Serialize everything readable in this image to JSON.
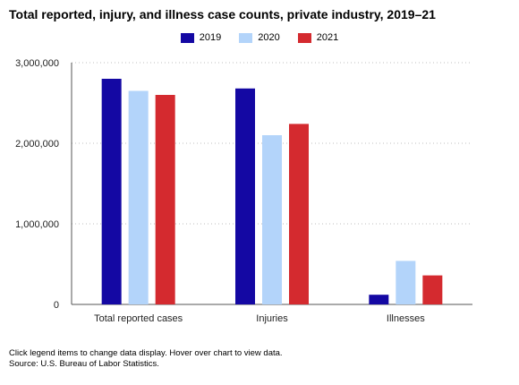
{
  "chart_data": {
    "type": "bar",
    "title": "Total reported, injury, and illness case counts, private industry, 2019–21",
    "categories": [
      "Total reported cases",
      "Injuries",
      "Illnesses"
    ],
    "series": [
      {
        "name": "2019",
        "color": "#1408a3",
        "values": [
          2800000,
          2680000,
          120000
        ]
      },
      {
        "name": "2020",
        "color": "#b3d4fa",
        "values": [
          2650000,
          2100000,
          540000
        ]
      },
      {
        "name": "2021",
        "color": "#d42a2f",
        "values": [
          2600000,
          2240000,
          360000
        ]
      }
    ],
    "ylim": [
      0,
      3000000
    ],
    "yticks": [
      0,
      1000000,
      2000000,
      3000000
    ],
    "ytick_labels": [
      "0",
      "1,000,000",
      "2,000,000",
      "3,000,000"
    ],
    "grid": true,
    "legend_position": "top-center"
  },
  "footer": {
    "note": "Click legend items to change data display. Hover over chart to view data.",
    "source": "Source: U.S. Bureau of Labor Statistics."
  }
}
